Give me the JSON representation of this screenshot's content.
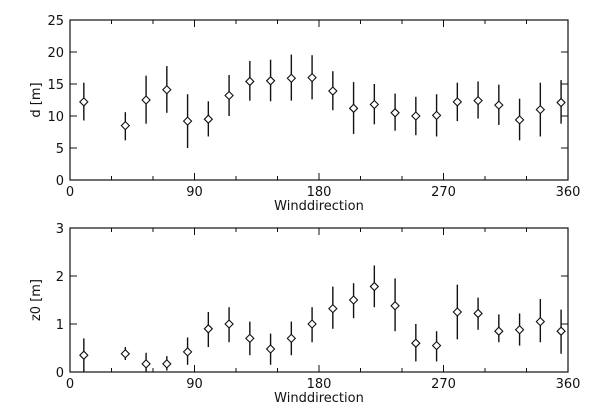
{
  "chart_data": [
    {
      "type": "scatter",
      "ylabel": "d [m]",
      "xlabel": "Winddirection",
      "xlim": [
        0,
        360
      ],
      "ylim": [
        0,
        25
      ],
      "xticks": [
        0,
        90,
        180,
        270,
        360
      ],
      "yticks": [
        0,
        5,
        10,
        15,
        20,
        25
      ],
      "grid": false,
      "marker": "diamond",
      "error_bars": true,
      "points": [
        {
          "x": 10,
          "y": 12.2,
          "lo": 9.3,
          "hi": 15.2
        },
        {
          "x": 40,
          "y": 8.5,
          "lo": 6.2,
          "hi": 10.6
        },
        {
          "x": 55,
          "y": 12.5,
          "lo": 8.8,
          "hi": 16.3
        },
        {
          "x": 70,
          "y": 14.1,
          "lo": 10.5,
          "hi": 17.8
        },
        {
          "x": 85,
          "y": 9.2,
          "lo": 5.0,
          "hi": 13.4
        },
        {
          "x": 100,
          "y": 9.5,
          "lo": 6.8,
          "hi": 12.3
        },
        {
          "x": 115,
          "y": 13.2,
          "lo": 10.0,
          "hi": 16.4
        },
        {
          "x": 130,
          "y": 15.4,
          "lo": 12.4,
          "hi": 18.6
        },
        {
          "x": 145,
          "y": 15.5,
          "lo": 12.3,
          "hi": 18.8
        },
        {
          "x": 160,
          "y": 15.9,
          "lo": 12.4,
          "hi": 19.6
        },
        {
          "x": 175,
          "y": 16.0,
          "lo": 12.6,
          "hi": 19.5
        },
        {
          "x": 190,
          "y": 13.9,
          "lo": 10.9,
          "hi": 17.0
        },
        {
          "x": 205,
          "y": 11.2,
          "lo": 7.2,
          "hi": 15.3
        },
        {
          "x": 220,
          "y": 11.8,
          "lo": 8.7,
          "hi": 15.0
        },
        {
          "x": 235,
          "y": 10.5,
          "lo": 7.7,
          "hi": 13.5
        },
        {
          "x": 250,
          "y": 10.0,
          "lo": 7.0,
          "hi": 13.0
        },
        {
          "x": 265,
          "y": 10.1,
          "lo": 6.8,
          "hi": 13.4
        },
        {
          "x": 280,
          "y": 12.2,
          "lo": 9.2,
          "hi": 15.2
        },
        {
          "x": 295,
          "y": 12.4,
          "lo": 9.6,
          "hi": 15.4
        },
        {
          "x": 310,
          "y": 11.7,
          "lo": 8.6,
          "hi": 14.9
        },
        {
          "x": 325,
          "y": 9.4,
          "lo": 6.2,
          "hi": 12.7
        },
        {
          "x": 340,
          "y": 11.0,
          "lo": 6.8,
          "hi": 15.2
        },
        {
          "x": 355,
          "y": 12.1,
          "lo": 8.8,
          "hi": 15.6
        }
      ]
    },
    {
      "type": "scatter",
      "ylabel": "z0 [m]",
      "xlabel": "Winddirection",
      "xlim": [
        0,
        360
      ],
      "ylim": [
        0,
        3
      ],
      "xticks": [
        0,
        90,
        180,
        270,
        360
      ],
      "yticks": [
        0,
        1,
        2,
        3
      ],
      "grid": false,
      "marker": "diamond",
      "error_bars": true,
      "points": [
        {
          "x": 10,
          "y": 0.35,
          "lo": 0.0,
          "hi": 0.7
        },
        {
          "x": 40,
          "y": 0.38,
          "lo": 0.25,
          "hi": 0.52
        },
        {
          "x": 55,
          "y": 0.17,
          "lo": 0.0,
          "hi": 0.4
        },
        {
          "x": 70,
          "y": 0.17,
          "lo": 0.03,
          "hi": 0.33
        },
        {
          "x": 85,
          "y": 0.42,
          "lo": 0.15,
          "hi": 0.72
        },
        {
          "x": 100,
          "y": 0.9,
          "lo": 0.52,
          "hi": 1.25
        },
        {
          "x": 115,
          "y": 1.0,
          "lo": 0.62,
          "hi": 1.35
        },
        {
          "x": 130,
          "y": 0.7,
          "lo": 0.35,
          "hi": 1.05
        },
        {
          "x": 145,
          "y": 0.48,
          "lo": 0.15,
          "hi": 0.8
        },
        {
          "x": 160,
          "y": 0.7,
          "lo": 0.35,
          "hi": 1.05
        },
        {
          "x": 175,
          "y": 1.0,
          "lo": 0.62,
          "hi": 1.35
        },
        {
          "x": 190,
          "y": 1.32,
          "lo": 0.9,
          "hi": 1.78
        },
        {
          "x": 205,
          "y": 1.5,
          "lo": 1.12,
          "hi": 1.85
        },
        {
          "x": 220,
          "y": 1.78,
          "lo": 1.35,
          "hi": 2.22
        },
        {
          "x": 235,
          "y": 1.38,
          "lo": 0.85,
          "hi": 1.95
        },
        {
          "x": 250,
          "y": 0.6,
          "lo": 0.22,
          "hi": 1.0
        },
        {
          "x": 265,
          "y": 0.55,
          "lo": 0.22,
          "hi": 0.85
        },
        {
          "x": 280,
          "y": 1.25,
          "lo": 0.68,
          "hi": 1.82
        },
        {
          "x": 295,
          "y": 1.22,
          "lo": 0.88,
          "hi": 1.55
        },
        {
          "x": 310,
          "y": 0.85,
          "lo": 0.62,
          "hi": 1.2
        },
        {
          "x": 325,
          "y": 0.88,
          "lo": 0.55,
          "hi": 1.22
        },
        {
          "x": 340,
          "y": 1.05,
          "lo": 0.62,
          "hi": 1.52
        },
        {
          "x": 355,
          "y": 0.85,
          "lo": 0.38,
          "hi": 1.3
        }
      ]
    }
  ]
}
